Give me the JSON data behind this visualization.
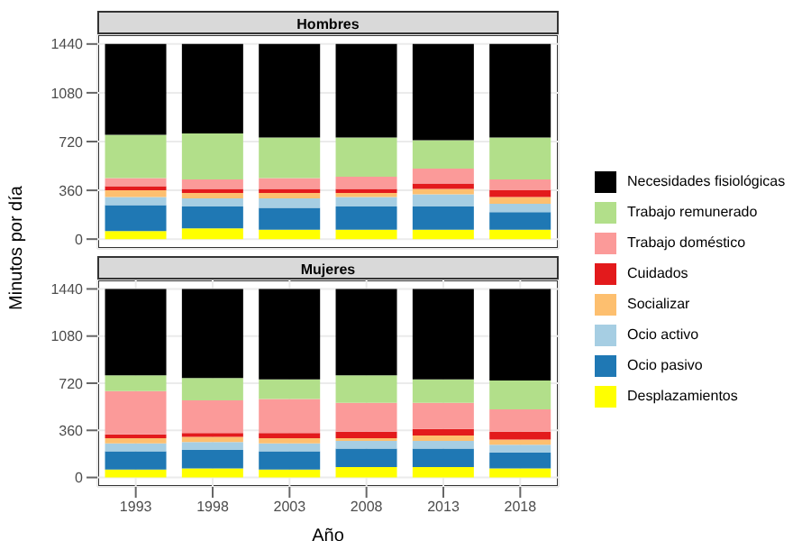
{
  "chart_data": [
    {
      "type": "bar",
      "title": "Hombres",
      "ylabel": "Minutos por día",
      "stacked": true,
      "categories": [
        "1993",
        "1998",
        "2003",
        "2008",
        "2013",
        "2018"
      ],
      "ylim": [
        -72,
        1512
      ],
      "yticks": [
        0,
        360,
        720,
        1080,
        1440
      ],
      "grid": true,
      "legend": "right",
      "tick_labels": "y",
      "series": [
        {
          "name": "Desplazamientos",
          "color": "#ffff00",
          "values": [
            60,
            80,
            70,
            70,
            70,
            70
          ]
        },
        {
          "name": "Ocio pasivo",
          "color": "#1f78b4",
          "values": [
            190,
            160,
            160,
            170,
            170,
            130
          ]
        },
        {
          "name": "Ocio activo",
          "color": "#a6cee3",
          "values": [
            60,
            60,
            70,
            70,
            90,
            60
          ]
        },
        {
          "name": "Socializar",
          "color": "#fdbf6f",
          "values": [
            50,
            40,
            40,
            30,
            40,
            50
          ]
        },
        {
          "name": "Cuidados",
          "color": "#e31a1c",
          "values": [
            30,
            30,
            30,
            30,
            40,
            50
          ]
        },
        {
          "name": "Trabajo doméstico",
          "color": "#fb9a99",
          "values": [
            60,
            70,
            80,
            90,
            110,
            80
          ]
        },
        {
          "name": "Trabajo remunerado",
          "color": "#b2df8a",
          "values": [
            320,
            340,
            300,
            290,
            210,
            310
          ]
        },
        {
          "name": "Necesidades fisiológicas",
          "color": "#000000",
          "values": [
            670,
            660,
            690,
            690,
            710,
            690
          ]
        }
      ]
    },
    {
      "type": "bar",
      "title": "Mujeres",
      "xlabel": "Año",
      "stacked": true,
      "categories": [
        "1993",
        "1998",
        "2003",
        "2008",
        "2013",
        "2018"
      ],
      "ylim": [
        -72,
        1512
      ],
      "yticks": [
        0,
        360,
        720,
        1080,
        1440
      ],
      "grid": true,
      "series": [
        {
          "color": "#ffff00",
          "values": [
            60,
            70,
            60,
            80,
            80,
            70
          ]
        },
        {
          "color": "#1f78b4",
          "values": [
            140,
            140,
            140,
            140,
            140,
            120
          ]
        },
        {
          "color": "#a6cee3",
          "values": [
            60,
            60,
            60,
            60,
            60,
            60
          ]
        },
        {
          "color": "#fdbf6f",
          "values": [
            40,
            40,
            40,
            20,
            40,
            40
          ]
        },
        {
          "color": "#e31a1c",
          "values": [
            30,
            30,
            40,
            50,
            50,
            60
          ]
        },
        {
          "color": "#fb9a99",
          "values": [
            330,
            250,
            260,
            220,
            200,
            170
          ]
        },
        {
          "color": "#b2df8a",
          "values": [
            120,
            170,
            150,
            210,
            180,
            220
          ]
        },
        {
          "color": "#000000",
          "values": [
            660,
            680,
            690,
            660,
            690,
            700
          ]
        }
      ]
    }
  ]
}
